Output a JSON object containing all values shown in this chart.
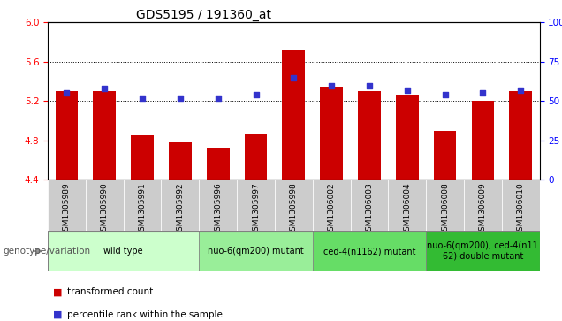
{
  "title": "GDS5195 / 191360_at",
  "samples": [
    "GSM1305989",
    "GSM1305990",
    "GSM1305991",
    "GSM1305992",
    "GSM1305996",
    "GSM1305997",
    "GSM1305998",
    "GSM1306002",
    "GSM1306003",
    "GSM1306004",
    "GSM1306008",
    "GSM1306009",
    "GSM1306010"
  ],
  "bar_values": [
    5.3,
    5.3,
    4.85,
    4.78,
    4.73,
    4.87,
    5.72,
    5.35,
    5.3,
    5.27,
    4.9,
    5.2,
    5.3
  ],
  "dot_values": [
    55,
    58,
    52,
    52,
    52,
    54,
    65,
    60,
    60,
    57,
    54,
    55,
    57
  ],
  "ylim_left": [
    4.4,
    6.0
  ],
  "ylim_right": [
    0,
    100
  ],
  "yticks_left": [
    4.4,
    4.8,
    5.2,
    5.6,
    6.0
  ],
  "yticks_right": [
    0,
    25,
    50,
    75,
    100
  ],
  "bar_color": "#cc0000",
  "dot_color": "#3333cc",
  "bar_bottom": 4.4,
  "grid_values": [
    4.8,
    5.2,
    5.6
  ],
  "groups": [
    {
      "label": "wild type",
      "start": 0,
      "end": 3,
      "color": "#ccffcc"
    },
    {
      "label": "nuo-6(qm200) mutant",
      "start": 4,
      "end": 6,
      "color": "#99ee99"
    },
    {
      "label": "ced-4(n1162) mutant",
      "start": 7,
      "end": 9,
      "color": "#66dd66"
    },
    {
      "label": "nuo-6(qm200); ced-4(n11\n62) double mutant",
      "start": 10,
      "end": 12,
      "color": "#33bb33"
    }
  ],
  "legend_items": [
    {
      "label": "transformed count",
      "color": "#cc0000"
    },
    {
      "label": "percentile rank within the sample",
      "color": "#3333cc"
    }
  ],
  "genotype_label": "genotype/variation",
  "xtick_bg": "#cccccc"
}
